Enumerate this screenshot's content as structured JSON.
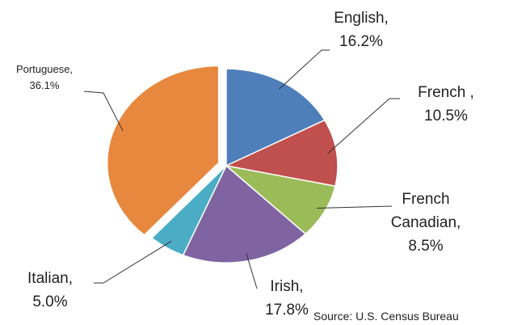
{
  "chart_data": {
    "type": "pie",
    "categories": [
      "English,",
      "French ,",
      "French Canadian,",
      "Irish,",
      "Italian,",
      "Portuguese,"
    ],
    "values": [
      16.2,
      10.5,
      8.5,
      17.8,
      5.0,
      36.1
    ],
    "value_labels": [
      "16.2%",
      "10.5%",
      "8.5%",
      "17.8%",
      "5.0%",
      "36.1%"
    ],
    "colors": [
      "#4f7fba",
      "#c0504d",
      "#9bbb59",
      "#8064a2",
      "#4bacc6",
      "#e8883f"
    ],
    "exploded": "Portuguese,",
    "annotation": "Source: U.S. Census Bureau"
  }
}
